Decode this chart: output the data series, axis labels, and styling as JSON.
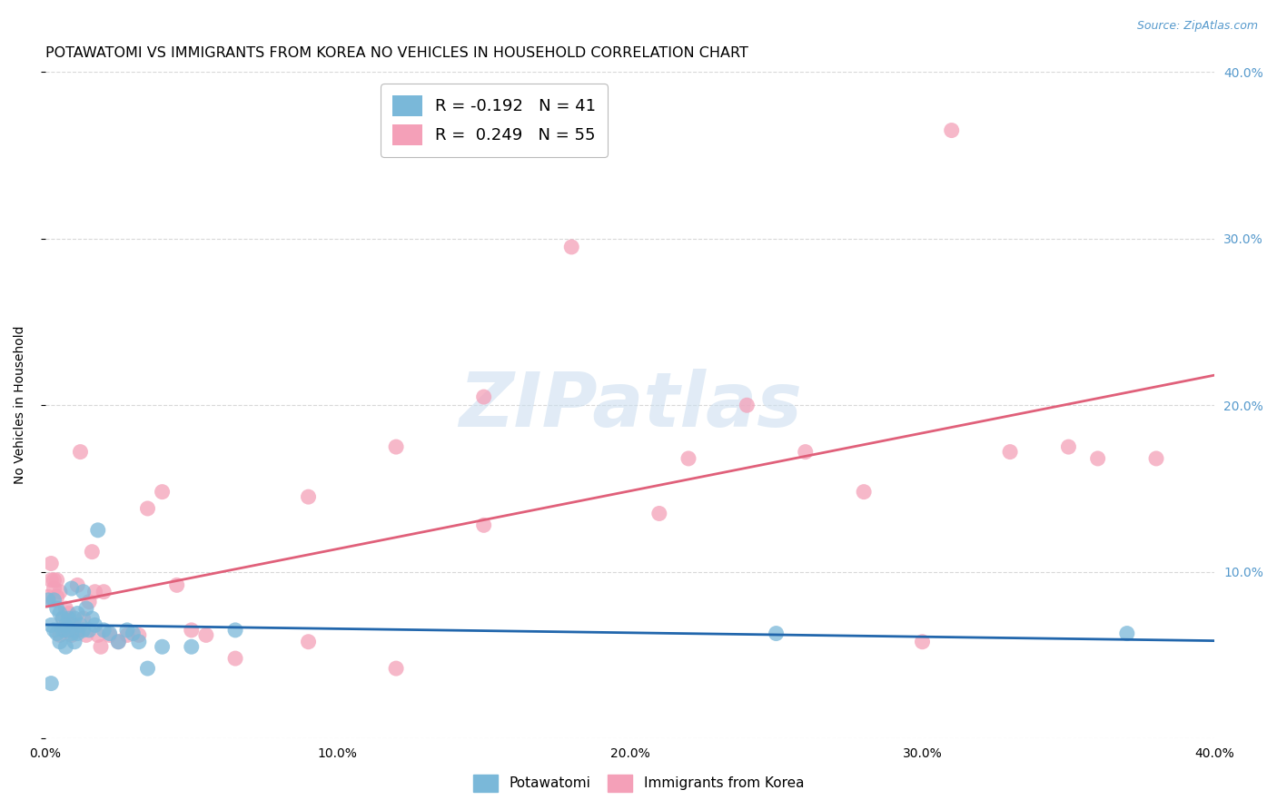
{
  "title": "POTAWATOMI VS IMMIGRANTS FROM KOREA NO VEHICLES IN HOUSEHOLD CORRELATION CHART",
  "source": "Source: ZipAtlas.com",
  "ylabel": "No Vehicles in Household",
  "xlim": [
    0.0,
    0.4
  ],
  "ylim": [
    0.0,
    0.4
  ],
  "xtick_vals": [
    0.0,
    0.1,
    0.2,
    0.3,
    0.4
  ],
  "xtick_labels": [
    "0.0%",
    "10.0%",
    "20.0%",
    "30.0%",
    "40.0%"
  ],
  "ytick_right_vals": [
    0.0,
    0.1,
    0.2,
    0.3,
    0.4
  ],
  "ytick_right_labels": [
    "",
    "10.0%",
    "20.0%",
    "30.0%",
    "40.0%"
  ],
  "potawatomi_color": "#7ab8d9",
  "korea_color": "#f4a0b8",
  "potawatomi_line_color": "#2166ac",
  "korea_line_color": "#e0607a",
  "watermark_color": "#cddff0",
  "background_color": "#ffffff",
  "grid_color": "#d8d8d8",
  "right_axis_color": "#5599cc",
  "title_fontsize": 11.5,
  "axis_label_fontsize": 10,
  "tick_fontsize": 10,
  "legend_fontsize": 13,
  "potawatomi_x": [
    0.001,
    0.002,
    0.002,
    0.003,
    0.003,
    0.004,
    0.004,
    0.005,
    0.005,
    0.006,
    0.006,
    0.007,
    0.007,
    0.008,
    0.008,
    0.009,
    0.009,
    0.01,
    0.01,
    0.011,
    0.011,
    0.012,
    0.013,
    0.013,
    0.014,
    0.015,
    0.016,
    0.017,
    0.018,
    0.02,
    0.022,
    0.025,
    0.028,
    0.03,
    0.032,
    0.035,
    0.04,
    0.05,
    0.065,
    0.25,
    0.37
  ],
  "potawatomi_y": [
    0.083,
    0.033,
    0.068,
    0.083,
    0.065,
    0.078,
    0.063,
    0.075,
    0.058,
    0.072,
    0.065,
    0.068,
    0.055,
    0.072,
    0.065,
    0.09,
    0.063,
    0.072,
    0.058,
    0.075,
    0.063,
    0.068,
    0.088,
    0.065,
    0.078,
    0.065,
    0.072,
    0.068,
    0.125,
    0.065,
    0.063,
    0.058,
    0.065,
    0.063,
    0.058,
    0.042,
    0.055,
    0.055,
    0.065,
    0.063,
    0.063
  ],
  "korea_x": [
    0.001,
    0.002,
    0.002,
    0.003,
    0.003,
    0.004,
    0.004,
    0.005,
    0.005,
    0.006,
    0.007,
    0.007,
    0.008,
    0.009,
    0.009,
    0.01,
    0.011,
    0.011,
    0.012,
    0.013,
    0.014,
    0.015,
    0.016,
    0.017,
    0.018,
    0.019,
    0.02,
    0.022,
    0.025,
    0.028,
    0.032,
    0.035,
    0.04,
    0.045,
    0.05,
    0.055,
    0.065,
    0.09,
    0.12,
    0.15,
    0.18,
    0.21,
    0.24,
    0.28,
    0.31,
    0.35,
    0.38,
    0.15,
    0.09,
    0.12,
    0.22,
    0.26,
    0.3,
    0.33,
    0.36
  ],
  "korea_y": [
    0.085,
    0.095,
    0.105,
    0.09,
    0.095,
    0.085,
    0.095,
    0.062,
    0.088,
    0.072,
    0.078,
    0.065,
    0.075,
    0.068,
    0.062,
    0.065,
    0.092,
    0.065,
    0.172,
    0.072,
    0.062,
    0.082,
    0.112,
    0.088,
    0.062,
    0.055,
    0.088,
    0.062,
    0.058,
    0.062,
    0.062,
    0.138,
    0.148,
    0.092,
    0.065,
    0.062,
    0.048,
    0.145,
    0.175,
    0.128,
    0.295,
    0.135,
    0.2,
    0.148,
    0.365,
    0.175,
    0.168,
    0.205,
    0.058,
    0.042,
    0.168,
    0.172,
    0.058,
    0.172,
    0.168
  ]
}
